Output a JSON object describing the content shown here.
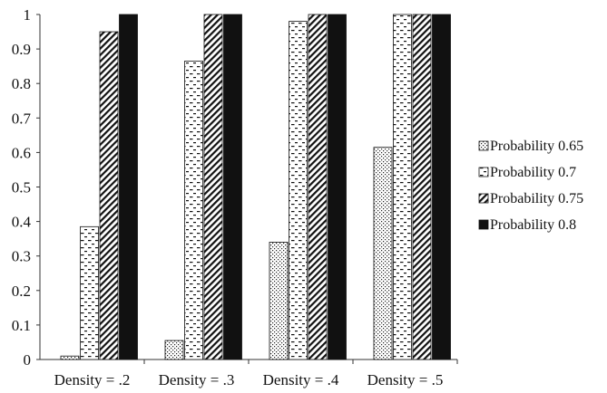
{
  "chart_data": {
    "type": "bar",
    "categories": [
      "Density = .2",
      "Density = .3",
      "Density = .4",
      "Density = .5"
    ],
    "series": [
      {
        "name": "Probability 0.65",
        "values": [
          0.01,
          0.055,
          0.34,
          0.615
        ],
        "pattern": "dots"
      },
      {
        "name": "Probability 0.7",
        "values": [
          0.385,
          0.865,
          0.98,
          1.0
        ],
        "pattern": "dashes"
      },
      {
        "name": "Probability 0.75",
        "values": [
          0.95,
          1.0,
          1.0,
          1.0
        ],
        "pattern": "diagonal"
      },
      {
        "name": "Probability 0.8",
        "values": [
          1.0,
          1.0,
          1.0,
          1.0
        ],
        "pattern": "solid"
      }
    ],
    "ylim": [
      0,
      1
    ],
    "yticks": [
      "0",
      "0.1",
      "0.2",
      "0.3",
      "0.4",
      "0.5",
      "0.6",
      "0.7",
      "0.8",
      "0.9",
      "1"
    ],
    "title": "",
    "xlabel": "",
    "ylabel": "",
    "grid": false,
    "legend_position": "right",
    "colors": {
      "bar_fill": "#ffffff",
      "bar_stroke": "#111111",
      "solid": "#111111",
      "axis": "#333333"
    }
  }
}
